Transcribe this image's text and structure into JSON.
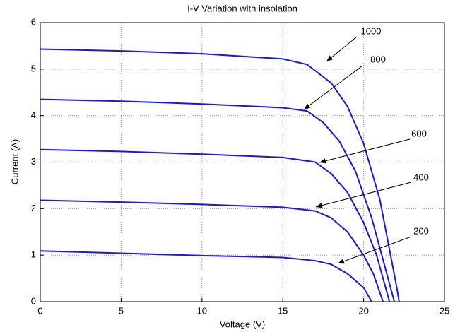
{
  "chart_data": {
    "type": "line",
    "title": "I-V Variation with insolation",
    "x_label": "Voltage (V)",
    "y_label": "Current (A)",
    "xlim": [
      0,
      25
    ],
    "xticks": [
      0,
      5,
      10,
      15,
      20,
      25
    ],
    "ylim": [
      0,
      6
    ],
    "yticks": [
      0,
      1,
      2,
      3,
      4,
      5,
      6
    ],
    "grid": true,
    "series": [
      {
        "name": "1000",
        "color": "#1616e6",
        "x": [
          0,
          5,
          10,
          15,
          16.5,
          18,
          19,
          20,
          21,
          21.5,
          22,
          22.2
        ],
        "values": [
          5.43,
          5.39,
          5.33,
          5.22,
          5.1,
          4.7,
          4.2,
          3.4,
          2.2,
          1.3,
          0.4,
          0
        ]
      },
      {
        "name": "800",
        "color": "#1616e6",
        "x": [
          0,
          5,
          10,
          15,
          16.5,
          17.5,
          18.5,
          19.5,
          20.5,
          21.2,
          21.9
        ],
        "values": [
          4.35,
          4.31,
          4.25,
          4.17,
          4.1,
          3.85,
          3.45,
          2.8,
          1.8,
          0.9,
          0
        ]
      },
      {
        "name": "600",
        "color": "#1616e6",
        "x": [
          0,
          5,
          10,
          15,
          17,
          18,
          19,
          20,
          20.8,
          21.6
        ],
        "values": [
          3.27,
          3.23,
          3.17,
          3.1,
          3.0,
          2.75,
          2.35,
          1.7,
          1.0,
          0
        ]
      },
      {
        "name": "400",
        "color": "#1616e6",
        "x": [
          0,
          5,
          10,
          15,
          17,
          18,
          19,
          20,
          20.6,
          21.2
        ],
        "values": [
          2.18,
          2.14,
          2.09,
          2.03,
          1.95,
          1.8,
          1.5,
          1.0,
          0.6,
          0
        ]
      },
      {
        "name": "200",
        "color": "#1616e6",
        "x": [
          0,
          5,
          10,
          15,
          17,
          18,
          19,
          20,
          20.5
        ],
        "values": [
          1.09,
          1.04,
          0.99,
          0.95,
          0.88,
          0.8,
          0.6,
          0.3,
          0
        ]
      }
    ]
  }
}
